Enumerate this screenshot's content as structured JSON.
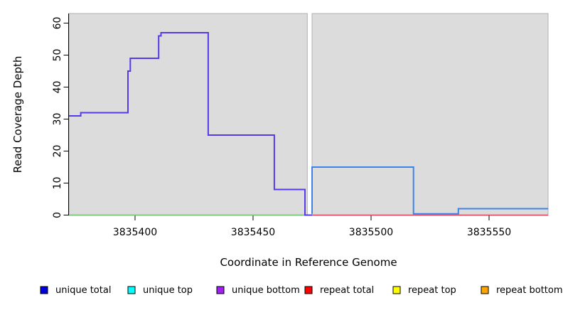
{
  "figure": {
    "background": "#ffffff"
  },
  "chart_data": {
    "type": "line",
    "subtype": "step-coverage",
    "title": "",
    "xlabel": "Coordinate in Reference Genome",
    "ylabel": "Read Coverage Depth",
    "xlim": [
      3835372,
      3835575
    ],
    "ylim": [
      0,
      63
    ],
    "x_ticks": [
      3835400,
      3835450,
      3835500,
      3835550
    ],
    "y_ticks": [
      0,
      10,
      20,
      30,
      40,
      50,
      60
    ],
    "grid": false,
    "colors": {
      "panel_fill": "#dcdcdc",
      "panel_border": "#b0b0b0",
      "axis": "#000000"
    },
    "panels": [
      {
        "name": "left-region",
        "x_start": 3835372,
        "x_end": 3835473
      },
      {
        "name": "right-region",
        "x_start": 3835475,
        "x_end": 3835575
      }
    ],
    "series": [
      {
        "name": "left-region-baseline",
        "color": "#7cc87c",
        "width": 1.8,
        "x_end": 3835473,
        "points": [
          [
            3835372,
            0
          ]
        ]
      },
      {
        "name": "left-region-coverage",
        "color": "#5639e8",
        "width": 2,
        "x_end": 3835475,
        "points": [
          [
            3835372,
            31
          ],
          [
            3835377,
            32
          ],
          [
            3835397,
            45
          ],
          [
            3835398,
            49
          ],
          [
            3835410,
            56
          ],
          [
            3835411,
            57
          ],
          [
            3835431,
            25
          ],
          [
            3835459,
            8
          ],
          [
            3835472,
            0
          ]
        ]
      },
      {
        "name": "right-region-coverage",
        "color": "#3e82e6",
        "width": 2,
        "rises_from_zero": true,
        "x_end": 3835575,
        "points": [
          [
            3835475,
            15
          ],
          [
            3835518,
            0
          ],
          [
            3835537,
            2
          ]
        ]
      },
      {
        "name": "right-region-baseline",
        "color": "#e04a60",
        "width": 1.6,
        "x_end": 3835575,
        "points": [
          [
            3835475,
            0
          ]
        ]
      }
    ],
    "legend": {
      "position": "bottom",
      "items": [
        {
          "label": "unique total",
          "color": "#0000dc"
        },
        {
          "label": "unique top",
          "color": "#00ffff"
        },
        {
          "label": "unique bottom",
          "color": "#a020f0"
        },
        {
          "label": "repeat total",
          "color": "#ff0000"
        },
        {
          "label": "repeat top",
          "color": "#ffff00"
        },
        {
          "label": "repeat bottom",
          "color": "#ffa500"
        }
      ]
    }
  }
}
